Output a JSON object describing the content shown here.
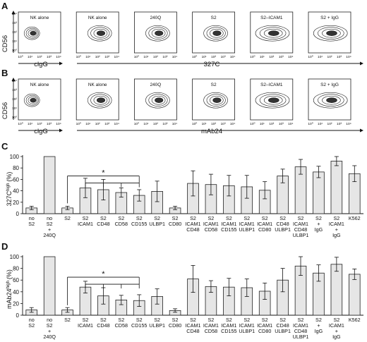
{
  "panels": {
    "A": {
      "letter": "A",
      "x_axis_label_left": "clgG",
      "x_axis_label_right": "327C",
      "y_axis_label": "CD56",
      "plots": [
        "NK alone",
        "NK alone",
        "240Q",
        "S2",
        "S2–ICAM1",
        "S2 + IgG"
      ]
    },
    "B": {
      "letter": "B",
      "x_axis_label_left": "clgG",
      "x_axis_label_right": "mAb24",
      "y_axis_label": "CD56",
      "plots": [
        "NK alone",
        "NK alone",
        "240Q",
        "S2",
        "S2–ICAM1",
        "S2 + IgG"
      ]
    },
    "C": {
      "letter": "C",
      "y_axis_label_main": "327C",
      "y_axis_label_sup": "high",
      "y_axis_label_unit": "(%)",
      "significance": "*"
    },
    "D": {
      "letter": "D",
      "y_axis_label_main": "mAb24",
      "y_axis_label_sup": "high",
      "y_axis_label_unit": "(%)",
      "significance": "*"
    }
  },
  "log_ticks": [
    "10⁰",
    "10¹",
    "10²",
    "10³",
    "10⁴"
  ],
  "chart_data": [
    {
      "type": "bar",
      "panel": "C",
      "ylabel": "327Chigh (%)",
      "ylim": [
        0,
        100
      ],
      "yticks": [
        "0",
        "20",
        "40",
        "60",
        "80",
        "100"
      ],
      "categories": [
        [
          "no",
          "S2"
        ],
        [
          "no",
          "S2",
          "+",
          "240Q"
        ],
        [
          "S2"
        ],
        [
          "S2",
          "ICAM1"
        ],
        [
          "S2",
          "CD48"
        ],
        [
          "S2",
          "CD58"
        ],
        [
          "S2",
          "CD155"
        ],
        [
          "S2",
          "ULBP1"
        ],
        [
          "S2",
          "CD80"
        ],
        [
          "S2",
          "ICAM1",
          "CD48"
        ],
        [
          "S2",
          "ICAM1",
          "CD58"
        ],
        [
          "S2",
          "ICAM1",
          "CD155"
        ],
        [
          "S2",
          "ICAM1",
          "ULBP1"
        ],
        [
          "S2",
          "ICAM1",
          "CD80"
        ],
        [
          "S2",
          "CD48",
          "ULBP1"
        ],
        [
          "S2",
          "ICAM1",
          "CD48",
          "ULBP1"
        ],
        [
          "S2",
          "+",
          "IgG"
        ],
        [
          "S2",
          "ICAM1",
          "+",
          "IgG"
        ],
        [
          "K562"
        ]
      ],
      "values": [
        10,
        100,
        10,
        45,
        42,
        37,
        32,
        39,
        10,
        53,
        51,
        49,
        47,
        41,
        66,
        82,
        73,
        92,
        70
      ],
      "errors": [
        3,
        0,
        3,
        17,
        18,
        8,
        10,
        18,
        3,
        22,
        18,
        18,
        20,
        15,
        12,
        13,
        10,
        8,
        14
      ]
    },
    {
      "type": "bar",
      "panel": "D",
      "ylabel": "mAb24high (%)",
      "ylim": [
        0,
        100
      ],
      "yticks": [
        "0",
        "20",
        "40",
        "60",
        "80",
        "100"
      ],
      "categories": [
        [
          "no",
          "S2"
        ],
        [
          "no",
          "S2",
          "+",
          "240Q"
        ],
        [
          "S2"
        ],
        [
          "S2",
          "ICAM1"
        ],
        [
          "S2",
          "CD48"
        ],
        [
          "S2",
          "CD58"
        ],
        [
          "S2",
          "CD155"
        ],
        [
          "S2",
          "ULBP1"
        ],
        [
          "S2",
          "CD80"
        ],
        [
          "S2",
          "ICAM1",
          "CD48"
        ],
        [
          "S2",
          "ICAM1",
          "CD58"
        ],
        [
          "S2",
          "ICAM1",
          "CD155"
        ],
        [
          "S2",
          "ICAM1",
          "ULBP1"
        ],
        [
          "S2",
          "ICAM1",
          "CD80"
        ],
        [
          "S2",
          "CD48",
          "ULBP1"
        ],
        [
          "S2",
          "ICAM1",
          "CD48",
          "ULBP1"
        ],
        [
          "S2",
          "+",
          "IgG"
        ],
        [
          "S2",
          "ICAM1",
          "+",
          "IgG"
        ],
        [
          "K562"
        ]
      ],
      "values": [
        9,
        100,
        9,
        48,
        33,
        26,
        25,
        32,
        8,
        62,
        49,
        48,
        47,
        41,
        60,
        84,
        72,
        87,
        70
      ],
      "errors": [
        4,
        0,
        4,
        10,
        14,
        8,
        10,
        13,
        3,
        23,
        10,
        15,
        15,
        14,
        20,
        16,
        14,
        12,
        9
      ]
    }
  ]
}
